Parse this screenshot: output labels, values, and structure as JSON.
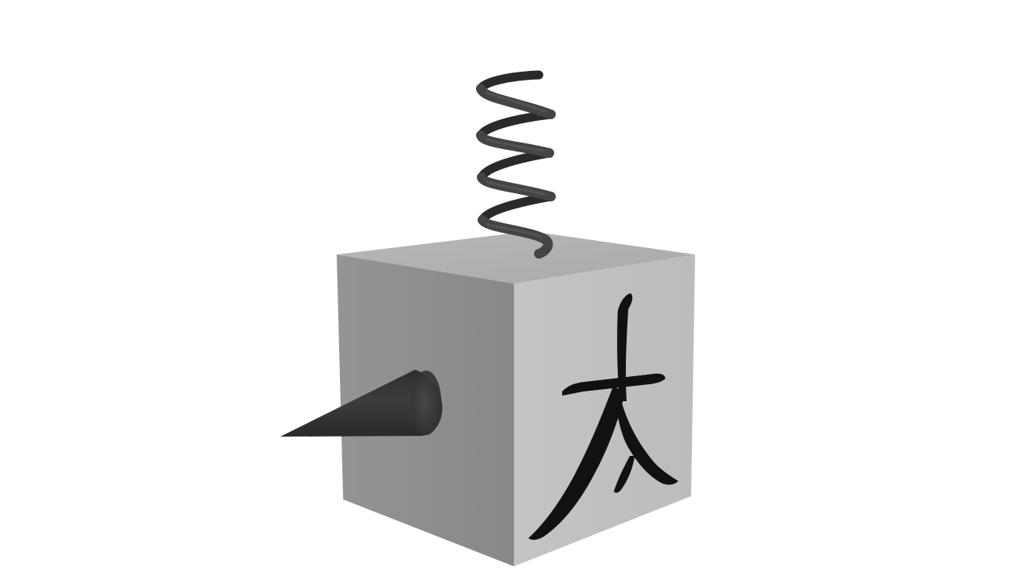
{
  "scene": {
    "background_color": "#ffffff",
    "objects": [
      {
        "kind": "cube",
        "icon": "cube-icon",
        "colors": {
          "top": "#b1b1b1",
          "left": "#8e8e8e",
          "right": "#c2c2c2"
        }
      },
      {
        "kind": "spring",
        "icon": "spring-coil-icon",
        "color": "#3d3d3d"
      },
      {
        "kind": "cone-spike",
        "icon": "cone-spike-icon",
        "color": "#3a3a3a"
      },
      {
        "kind": "glyph-decal",
        "icon": "cjk-glyph-icon",
        "glyph": "太",
        "color": "#111111"
      }
    ]
  }
}
